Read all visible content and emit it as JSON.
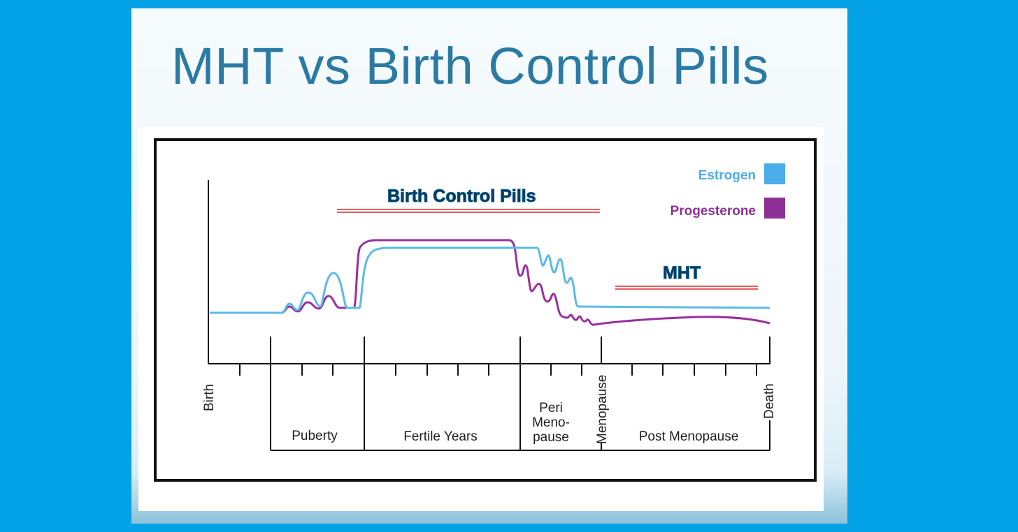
{
  "slide": {
    "title": "MHT vs Birth Control Pills"
  },
  "diagram": {
    "callouts": {
      "birth_control": "Birth Control Pills",
      "mht": "MHT"
    },
    "legend": [
      {
        "label": "Estrogen",
        "color": "#4aaeea"
      },
      {
        "label": "Progesterone",
        "color": "#8e2f96"
      }
    ],
    "colors": {
      "estrogen_line": "#5cbae8",
      "progesterone_line": "#9a2f9f",
      "underline": "#e0262b",
      "axis": "#111111"
    },
    "axis_labels": {
      "birth": "Birth",
      "menopause": "Menopause",
      "death": "Death"
    },
    "stages": {
      "puberty": "Puberty",
      "fertile": "Fertile Years",
      "peri_line1": "Peri",
      "peri_line2": "Meno-",
      "peri_line3": "pause",
      "post": "Post Menopause"
    }
  }
}
